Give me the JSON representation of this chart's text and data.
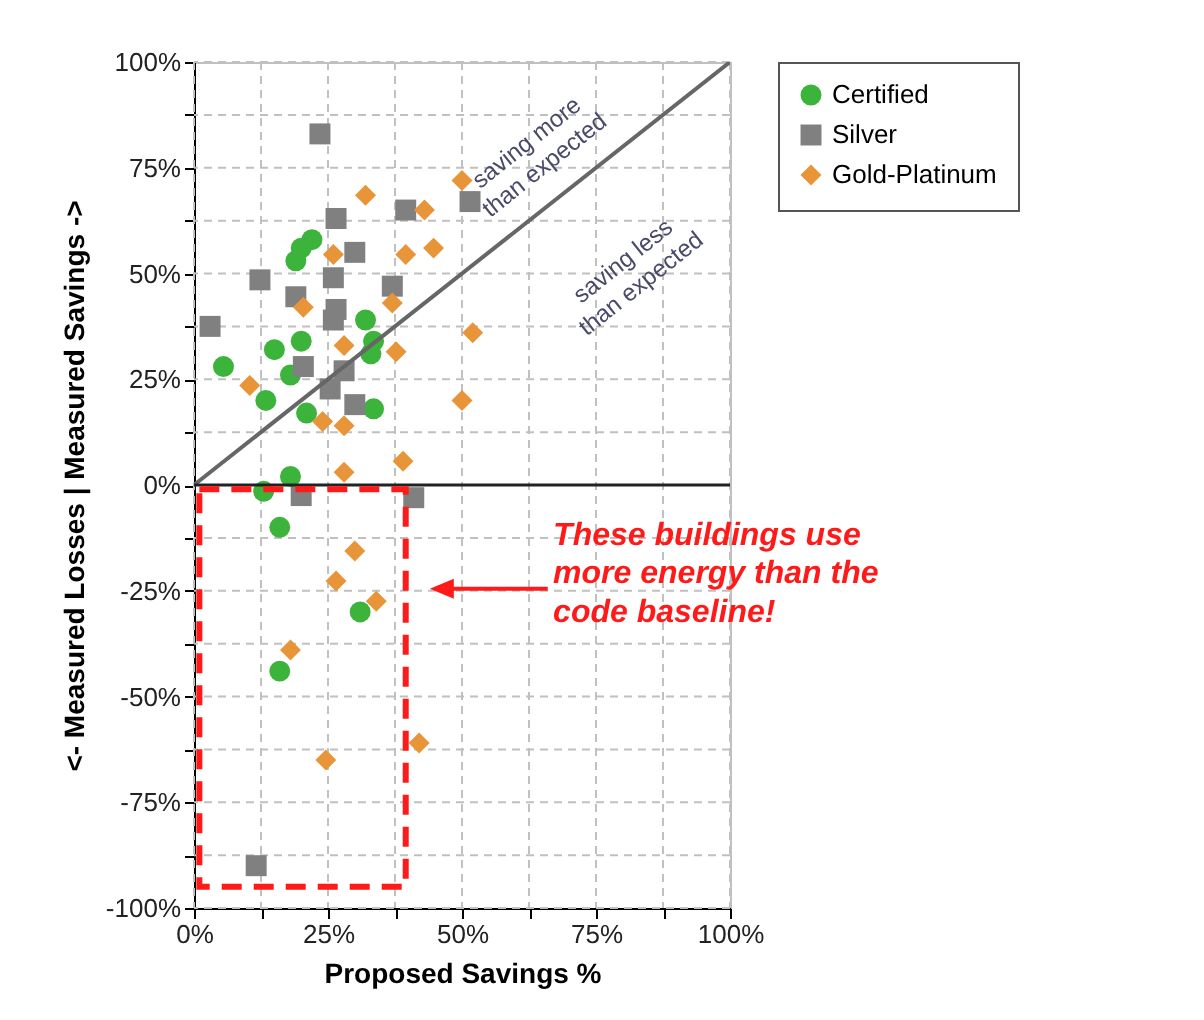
{
  "chart_data": {
    "type": "scatter",
    "xlabel": "Proposed Savings %",
    "ylabel": "<- Measured Losses | Measured Savings ->",
    "xlim": [
      0,
      100
    ],
    "ylim": [
      -100,
      100
    ],
    "xticks": [
      {
        "value": 0,
        "label": "0%"
      },
      {
        "value": 12.5,
        "label": null
      },
      {
        "value": 25,
        "label": "25%"
      },
      {
        "value": 37.5,
        "label": null
      },
      {
        "value": 50,
        "label": "50%"
      },
      {
        "value": 62.5,
        "label": null
      },
      {
        "value": 75,
        "label": "75%"
      },
      {
        "value": 87.5,
        "label": null
      },
      {
        "value": 100,
        "label": "100%"
      }
    ],
    "yticks": [
      {
        "value": -100,
        "label": "-100%"
      },
      {
        "value": -87.5,
        "label": null
      },
      {
        "value": -75,
        "label": "-75%"
      },
      {
        "value": -62.5,
        "label": null
      },
      {
        "value": -50,
        "label": "-50%"
      },
      {
        "value": -37.5,
        "label": null
      },
      {
        "value": -25,
        "label": "-25%"
      },
      {
        "value": -12.5,
        "label": null
      },
      {
        "value": 0,
        "label": "0%"
      },
      {
        "value": 12.5,
        "label": null
      },
      {
        "value": 25,
        "label": "25%"
      },
      {
        "value": 37.5,
        "label": null
      },
      {
        "value": 50,
        "label": "50%"
      },
      {
        "value": 62.5,
        "label": null
      },
      {
        "value": 75,
        "label": "75%"
      },
      {
        "value": 87.5,
        "label": null
      },
      {
        "value": 100,
        "label": "100%"
      }
    ],
    "grid": true,
    "legend": "right",
    "ref_lines": [
      {
        "axis": "y",
        "value": 0,
        "color": "#222222"
      }
    ],
    "annotations": [
      "saving more\nthan expected",
      "saving less\nthan expected",
      "These buildings use\nmore energy than the\ncode baseline!"
    ],
    "series": [
      {
        "name": "Certified",
        "marker": "circle",
        "color": "#3cb43c",
        "x": [
          5.5,
          15,
          20,
          13.4,
          18,
          21,
          20,
          22,
          19,
          32,
          33.5,
          33,
          33.5,
          13,
          18,
          16,
          31,
          16
        ],
        "values": [
          28,
          32,
          34,
          20,
          26,
          17,
          56,
          58,
          53,
          39,
          34,
          31,
          18,
          -1.5,
          2,
          -10,
          -30,
          -44
        ]
      },
      {
        "name": "Silver",
        "marker": "square",
        "color": "#808080",
        "x": [
          23.5,
          26.5,
          39.5,
          51.5,
          12.3,
          3,
          30,
          26,
          19,
          37,
          26.5,
          26,
          20.4,
          28,
          25.4,
          30,
          20,
          41,
          11.6
        ],
        "values": [
          83,
          63,
          65,
          67,
          48.5,
          37.5,
          55,
          49,
          44.5,
          47,
          41.5,
          39,
          28,
          27,
          22.7,
          19,
          -2.5,
          -3,
          -90
        ]
      },
      {
        "name": "Gold-Platinum",
        "marker": "diamond",
        "color": "#e8953a",
        "x": [
          32,
          43,
          50,
          44.7,
          39.5,
          26,
          20.4,
          37,
          52,
          28,
          37.7,
          10.4,
          50,
          24,
          28,
          28,
          39,
          30,
          26.5,
          34,
          18,
          24.6,
          42
        ],
        "values": [
          68.5,
          65,
          72,
          56,
          54.5,
          54.5,
          42,
          43,
          36,
          33,
          31.5,
          23.5,
          20,
          15,
          14,
          3,
          5.6,
          -15.6,
          -22.7,
          -27.5,
          -39,
          -65,
          -61
        ]
      },
      {
        "type": "line",
        "color": "#666666",
        "x": [
          0,
          100
        ],
        "values": [
          0,
          100
        ]
      }
    ]
  }
}
